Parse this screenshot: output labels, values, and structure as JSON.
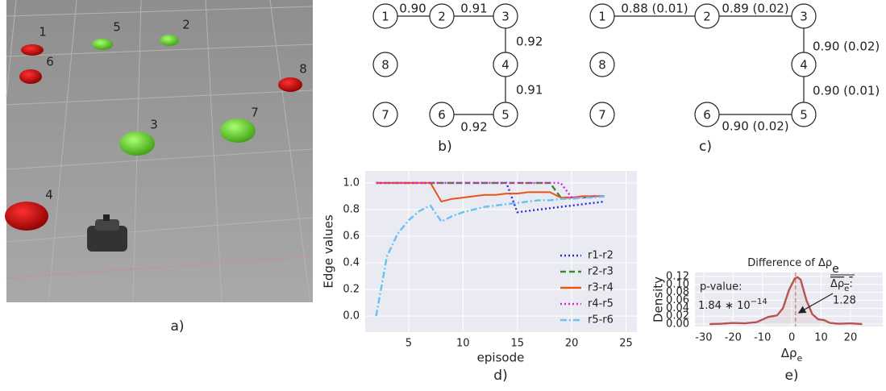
{
  "scene": {
    "objects": [
      {
        "label": "1"
      },
      {
        "label": "6"
      },
      {
        "label": "5"
      },
      {
        "label": "2"
      },
      {
        "label": "8"
      },
      {
        "label": "3"
      },
      {
        "label": "7"
      },
      {
        "label": "4"
      }
    ],
    "caption": "a)"
  },
  "graphs": [
    {
      "caption": "b)",
      "nodes": [
        {
          "label": "1"
        },
        {
          "label": "2"
        },
        {
          "label": "3"
        },
        {
          "label": "8"
        },
        {
          "label": "4"
        },
        {
          "label": "7"
        },
        {
          "label": "6"
        },
        {
          "label": "5"
        }
      ],
      "edges": [
        {
          "label": "0.90"
        },
        {
          "label": "0.91"
        },
        {
          "label": "0.92"
        },
        {
          "label": "0.91"
        },
        {
          "label": "0.92"
        }
      ]
    },
    {
      "caption": "c)",
      "nodes": [
        {
          "label": "1"
        },
        {
          "label": "2"
        },
        {
          "label": "3"
        },
        {
          "label": "8"
        },
        {
          "label": "4"
        },
        {
          "label": "7"
        },
        {
          "label": "6"
        },
        {
          "label": "5"
        }
      ],
      "edges": [
        {
          "label": "0.88 (0.01)"
        },
        {
          "label": "0.89 (0.02)"
        },
        {
          "label": "0.90 (0.02)"
        },
        {
          "label": "0.90 (0.01)"
        },
        {
          "label": "0.90 (0.02)"
        }
      ]
    }
  ],
  "chart_data": [
    {
      "type": "line",
      "caption": "d)",
      "xlabel": "episode",
      "ylabel": "Edge values",
      "grid": true,
      "legend": "lower right",
      "x": [
        2,
        3,
        4,
        5,
        6,
        7,
        8,
        9,
        10,
        11,
        12,
        13,
        14,
        15,
        16,
        17,
        18,
        19,
        20,
        21,
        22,
        23
      ],
      "series": [
        {
          "name": "r1-r2",
          "color": "#2b2bd6",
          "style": "dotted",
          "values": [
            1,
            1,
            1,
            1,
            1,
            1,
            1,
            1,
            1,
            1,
            1,
            1,
            1,
            0.78,
            0.79,
            0.8,
            0.81,
            0.82,
            0.83,
            0.84,
            0.85,
            0.86
          ]
        },
        {
          "name": "r2-r3",
          "color": "#3a8a2a",
          "style": "dashed",
          "values": [
            1,
            1,
            1,
            1,
            1,
            1,
            1,
            1,
            1,
            1,
            1,
            1,
            1,
            1,
            1,
            1,
            1,
            0.89,
            0.89,
            0.89,
            0.9,
            0.9
          ]
        },
        {
          "name": "r3-r4",
          "color": "#e8541a",
          "style": "solid",
          "values": [
            1,
            1,
            1,
            1,
            1,
            1,
            0.86,
            0.88,
            0.89,
            0.9,
            0.91,
            0.91,
            0.92,
            0.92,
            0.93,
            0.93,
            0.93,
            0.89,
            0.89,
            0.9,
            0.9,
            0.9
          ]
        },
        {
          "name": "r4-r5",
          "color": "#e020e0",
          "style": "dotted",
          "values": [
            1,
            1,
            1,
            1,
            1,
            1,
            1,
            1,
            1,
            1,
            1,
            1,
            1,
            1,
            1,
            1,
            1,
            1,
            0.89,
            0.89,
            0.9,
            0.9
          ]
        },
        {
          "name": "r5-r6",
          "color": "#66c2f0",
          "style": "dashdot",
          "values": [
            0.0,
            0.45,
            0.62,
            0.72,
            0.79,
            0.83,
            0.71,
            0.75,
            0.78,
            0.8,
            0.82,
            0.83,
            0.84,
            0.85,
            0.86,
            0.87,
            0.87,
            0.88,
            0.88,
            0.89,
            0.89,
            0.9
          ]
        }
      ],
      "xlim": [
        1,
        26
      ],
      "xticks": [
        5,
        10,
        15,
        20,
        25
      ],
      "ylim": [
        -0.12,
        1.09
      ],
      "yticks": [
        {
          "value": 0,
          "label": "0.0"
        },
        0.2,
        0.4,
        0.6,
        0.8,
        {
          "value": 1,
          "label": "1.0"
        }
      ]
    },
    {
      "type": "line",
      "caption": "e)",
      "title": "Difference of Δρ",
      "title_sub": "e",
      "xlabel": "Δρ",
      "xlabel_sub": "e",
      "ylabel": "Density",
      "grid": true,
      "color": "#b85450",
      "fill": true,
      "x": [
        -28,
        -24,
        -20,
        -16,
        -12,
        -8,
        -5,
        -3,
        -1,
        1,
        2,
        3,
        5,
        7,
        9,
        11,
        13,
        16,
        20,
        24
      ],
      "values": [
        0,
        0.001,
        0.003,
        0.002,
        0.005,
        0.018,
        0.022,
        0.04,
        0.085,
        0.115,
        0.118,
        0.112,
        0.06,
        0.025,
        0.012,
        0.01,
        0.003,
        0.001,
        0.002,
        0
      ],
      "mean": 1.28,
      "mean_label": "Δρ",
      "mean_label_sub": "e",
      "mean_label_colon": ":",
      "p_value_label": "p-value:",
      "p_value": "1.84 ∗ 10",
      "p_value_exp": "−14",
      "xlim": [
        -33,
        31
      ],
      "xticks": [
        -30,
        -20,
        -10,
        0,
        10,
        20
      ],
      "ylim": [
        -0.006,
        0.13
      ],
      "yticks": [
        {
          "value": 0,
          "label": "0.00"
        },
        0.02,
        0.04,
        0.06,
        0.08,
        {
          "value": 0.1,
          "label": "0.10"
        },
        0.12
      ]
    }
  ]
}
